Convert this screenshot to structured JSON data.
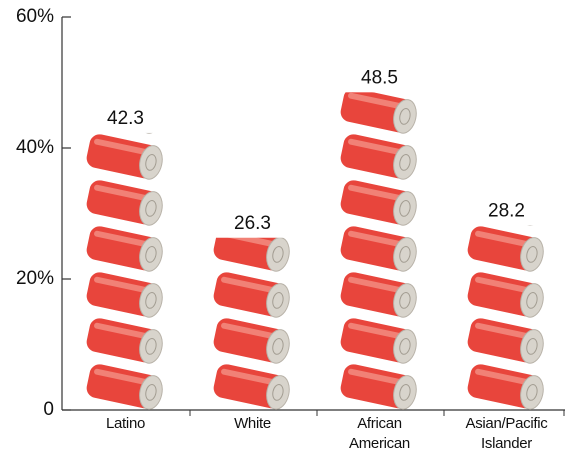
{
  "chart_data": {
    "type": "bar",
    "categories": [
      "Latino",
      "White",
      "African American",
      "Asian/Pacific Islander"
    ],
    "values": [
      42.3,
      26.3,
      48.5,
      28.2
    ],
    "color": "#e8453c",
    "ylim": [
      0,
      60
    ],
    "yticks": [
      0,
      {
        "value": 20,
        "label": "20%"
      },
      {
        "value": 40,
        "label": "40%"
      },
      {
        "value": 60,
        "label": "60%"
      }
    ]
  }
}
